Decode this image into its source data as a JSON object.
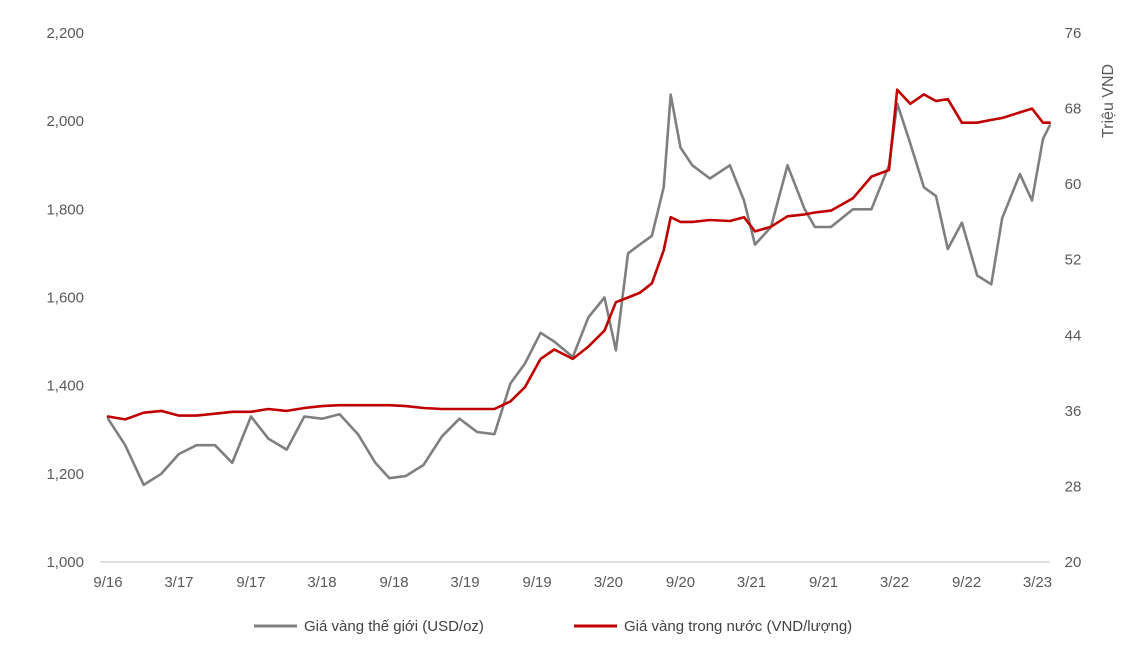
{
  "chart_data": {
    "type": "line",
    "title": "",
    "xlabel": "",
    "ylabel_left": "",
    "ylabel_right": "Triệu VND",
    "x_tick_labels": [
      "9/16",
      "3/17",
      "9/17",
      "3/18",
      "9/18",
      "3/19",
      "9/19",
      "3/20",
      "9/20",
      "3/21",
      "9/21",
      "3/22",
      "9/22",
      "3/23"
    ],
    "y_left_ticks": [
      "1,000",
      "1,200",
      "1,400",
      "1,600",
      "1,800",
      "2,000",
      "2,200"
    ],
    "y_right_ticks": [
      "20",
      "28",
      "36",
      "44",
      "52",
      "60",
      "68",
      "76"
    ],
    "ylim_left": [
      1000,
      2200
    ],
    "ylim_right": [
      20,
      76
    ],
    "grid": false,
    "legend_position": "bottom",
    "x_dates": [
      "2016-09-01",
      "2016-10-15",
      "2016-12-01",
      "2017-01-15",
      "2017-03-01",
      "2017-04-15",
      "2017-06-01",
      "2017-07-15",
      "2017-09-01",
      "2017-10-15",
      "2017-12-01",
      "2018-01-15",
      "2018-03-01",
      "2018-04-15",
      "2018-06-01",
      "2018-07-15",
      "2018-08-20",
      "2018-10-01",
      "2018-11-15",
      "2019-01-01",
      "2019-02-15",
      "2019-04-01",
      "2019-05-15",
      "2019-06-25",
      "2019-08-01",
      "2019-09-10",
      "2019-10-15",
      "2019-12-01",
      "2020-01-10",
      "2020-02-20",
      "2020-03-20",
      "2020-04-20",
      "2020-05-20",
      "2020-06-20",
      "2020-07-20",
      "2020-08-07",
      "2020-09-01",
      "2020-10-01",
      "2020-11-15",
      "2021-01-05",
      "2021-02-10",
      "2021-03-10",
      "2021-04-20",
      "2021-06-01",
      "2021-07-15",
      "2021-08-10",
      "2021-09-20",
      "2021-11-15",
      "2022-01-01",
      "2022-02-15",
      "2022-03-08",
      "2022-04-10",
      "2022-05-15",
      "2022-06-15",
      "2022-07-15",
      "2022-08-20",
      "2022-09-28",
      "2022-11-03",
      "2022-12-01",
      "2023-01-15",
      "2023-02-15",
      "2023-03-15",
      "2023-04-01"
    ],
    "series": [
      {
        "name": "Giá vàng thế giới (USD/oz)",
        "axis": "left",
        "color": "#7f7f7f",
        "values": [
          1325,
          1265,
          1175,
          1200,
          1245,
          1265,
          1265,
          1225,
          1330,
          1280,
          1255,
          1330,
          1325,
          1335,
          1290,
          1225,
          1190,
          1195,
          1220,
          1285,
          1325,
          1295,
          1290,
          1405,
          1450,
          1520,
          1500,
          1465,
          1555,
          1600,
          1480,
          1700,
          1720,
          1740,
          1850,
          2060,
          1940,
          1900,
          1870,
          1900,
          1820,
          1720,
          1760,
          1900,
          1800,
          1760,
          1760,
          1800,
          1800,
          1900,
          2040,
          1950,
          1850,
          1830,
          1710,
          1770,
          1650,
          1630,
          1780,
          1880,
          1820,
          1960,
          1990
        ]
      },
      {
        "name": "Giá vàng trong nước (VND/lượng)",
        "axis": "right",
        "color": "#c00000",
        "values": [
          35.4,
          35.1,
          35.8,
          36.0,
          35.5,
          35.5,
          35.7,
          35.9,
          35.9,
          36.2,
          36.0,
          36.3,
          36.5,
          36.6,
          36.6,
          36.6,
          36.6,
          36.5,
          36.3,
          36.2,
          36.2,
          36.2,
          36.2,
          37.0,
          38.5,
          41.5,
          42.5,
          41.5,
          42.8,
          44.5,
          47.5,
          48.0,
          48.5,
          49.5,
          53.0,
          56.5,
          56.0,
          56.0,
          56.2,
          56.1,
          56.5,
          55.0,
          55.5,
          56.6,
          56.8,
          57.0,
          57.2,
          58.5,
          60.8,
          61.5,
          70.0,
          68.5,
          69.5,
          68.8,
          69.0,
          66.5,
          66.5,
          66.8,
          67.0,
          67.6,
          68.0,
          66.5,
          66.5
        ]
      }
    ]
  }
}
